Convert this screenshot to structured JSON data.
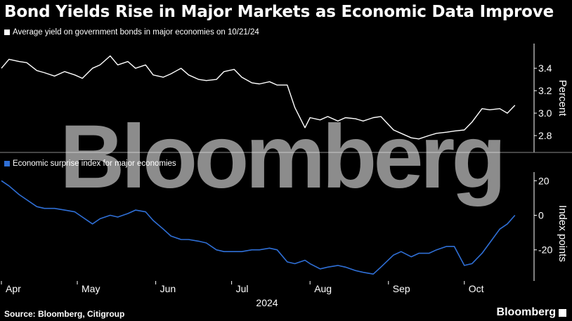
{
  "title": "Bond Yields Rise in Major Markets as Economic Data Improve",
  "source": "Source: Bloomberg, Citigroup",
  "brand": "Bloomberg",
  "watermark": "Bloomberg",
  "colors": {
    "background": "#000000",
    "yield_line": "#ffffff",
    "surprise_line": "#2f6fd6",
    "text": "#ffffff"
  },
  "chart_data": [
    {
      "type": "line",
      "legend": "Average yield on government bonds in major economies on 10/21/24",
      "ylabel": "Percent",
      "ylim": [
        2.65,
        3.62
      ],
      "yticks": [
        2.8,
        3.0,
        3.2,
        3.4
      ],
      "ytick_labels": [
        "2.8",
        "3.0",
        "3.2",
        "3.4"
      ],
      "series": [
        {
          "x": [
            "2024-04-01",
            "2024-04-04",
            "2024-04-08",
            "2024-04-11",
            "2024-04-15",
            "2024-04-18",
            "2024-04-22",
            "2024-04-26",
            "2024-04-30",
            "2024-05-03",
            "2024-05-07",
            "2024-05-10",
            "2024-05-14",
            "2024-05-17",
            "2024-05-21",
            "2024-05-24",
            "2024-05-28",
            "2024-05-31",
            "2024-06-04",
            "2024-06-07",
            "2024-06-11",
            "2024-06-14",
            "2024-06-18",
            "2024-06-21",
            "2024-06-25",
            "2024-06-28",
            "2024-07-02",
            "2024-07-05",
            "2024-07-09",
            "2024-07-12",
            "2024-07-16",
            "2024-07-19",
            "2024-07-23",
            "2024-07-26",
            "2024-07-30",
            "2024-08-01",
            "2024-08-05",
            "2024-08-08",
            "2024-08-12",
            "2024-08-15",
            "2024-08-19",
            "2024-08-22",
            "2024-08-26",
            "2024-08-29",
            "2024-09-03",
            "2024-09-06",
            "2024-09-10",
            "2024-09-13",
            "2024-09-17",
            "2024-09-20",
            "2024-09-24",
            "2024-09-27",
            "2024-10-01",
            "2024-10-04",
            "2024-10-08",
            "2024-10-11",
            "2024-10-15",
            "2024-10-18",
            "2024-10-21"
          ],
          "values": [
            3.4,
            3.48,
            3.46,
            3.45,
            3.38,
            3.36,
            3.33,
            3.37,
            3.34,
            3.31,
            3.4,
            3.43,
            3.51,
            3.43,
            3.46,
            3.4,
            3.43,
            3.34,
            3.32,
            3.35,
            3.4,
            3.34,
            3.3,
            3.29,
            3.3,
            3.37,
            3.39,
            3.32,
            3.27,
            3.26,
            3.28,
            3.25,
            3.25,
            3.05,
            2.87,
            2.96,
            2.94,
            2.97,
            2.93,
            2.96,
            2.95,
            2.93,
            2.96,
            2.97,
            2.85,
            2.82,
            2.78,
            2.77,
            2.8,
            2.82,
            2.83,
            2.84,
            2.85,
            2.92,
            3.04,
            3.03,
            3.04,
            3.0,
            3.07
          ]
        }
      ]
    },
    {
      "type": "line",
      "legend": "Economic surprise index for major economies",
      "ylabel": "Index points",
      "ylim": [
        -38,
        25
      ],
      "yticks": [
        20,
        0,
        -20
      ],
      "ytick_labels": [
        "20",
        "0",
        "-20"
      ],
      "xlim": [
        "2024-04-01",
        "2024-10-23"
      ],
      "xtick_labels": [
        "Apr",
        "May",
        "Jun",
        "Jul",
        "Aug",
        "Sep",
        "Oct"
      ],
      "xtick_dates": [
        "2024-04-01",
        "2024-05-01",
        "2024-06-01",
        "2024-07-01",
        "2024-08-01",
        "2024-09-01",
        "2024-10-01"
      ],
      "x_year_label": "2024",
      "series": [
        {
          "x": [
            "2024-04-01",
            "2024-04-04",
            "2024-04-08",
            "2024-04-11",
            "2024-04-15",
            "2024-04-18",
            "2024-04-22",
            "2024-04-26",
            "2024-04-30",
            "2024-05-03",
            "2024-05-07",
            "2024-05-10",
            "2024-05-14",
            "2024-05-17",
            "2024-05-21",
            "2024-05-24",
            "2024-05-28",
            "2024-05-31",
            "2024-06-04",
            "2024-06-07",
            "2024-06-11",
            "2024-06-14",
            "2024-06-18",
            "2024-06-21",
            "2024-06-25",
            "2024-06-28",
            "2024-07-02",
            "2024-07-05",
            "2024-07-09",
            "2024-07-12",
            "2024-07-16",
            "2024-07-19",
            "2024-07-23",
            "2024-07-26",
            "2024-07-30",
            "2024-08-01",
            "2024-08-05",
            "2024-08-08",
            "2024-08-12",
            "2024-08-15",
            "2024-08-19",
            "2024-08-22",
            "2024-08-26",
            "2024-08-29",
            "2024-09-03",
            "2024-09-06",
            "2024-09-10",
            "2024-09-13",
            "2024-09-17",
            "2024-09-20",
            "2024-09-24",
            "2024-09-27",
            "2024-10-01",
            "2024-10-04",
            "2024-10-08",
            "2024-10-11",
            "2024-10-15",
            "2024-10-18",
            "2024-10-21"
          ],
          "values": [
            20,
            17,
            12,
            9,
            5,
            4,
            4,
            3,
            2,
            -1,
            -5,
            -2,
            0,
            -1,
            1,
            3,
            2,
            -3,
            -8,
            -12,
            -14,
            -14,
            -15,
            -16,
            -20,
            -21,
            -21,
            -21,
            -20,
            -20,
            -19,
            -20,
            -27,
            -28,
            -26,
            -28,
            -31,
            -30,
            -29,
            -30,
            -32,
            -33,
            -34,
            -30,
            -23,
            -21,
            -24,
            -22,
            -22,
            -20,
            -18,
            -18,
            -29,
            -28,
            -22,
            -16,
            -8,
            -5,
            0
          ]
        }
      ]
    }
  ]
}
